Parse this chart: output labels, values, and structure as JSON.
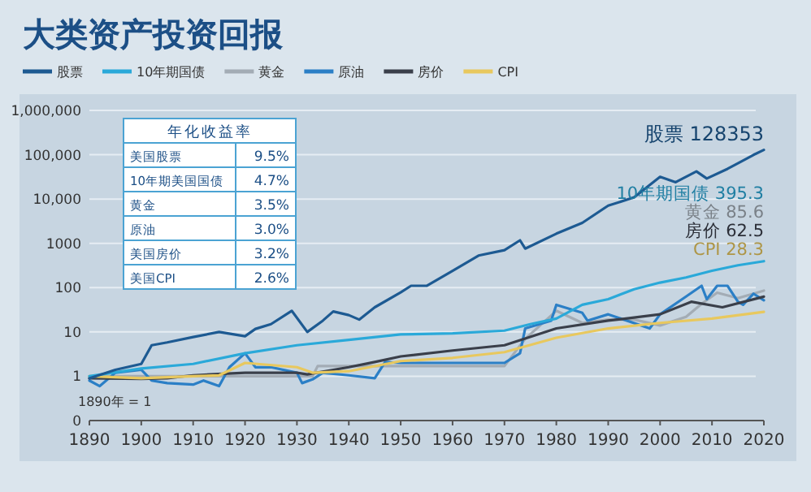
{
  "chart_data": [
    {
      "type": "line",
      "title": "大类资产投资回报",
      "legend": "top",
      "grid": "y",
      "log": "y",
      "line_style": "solid",
      "marker": "none",
      "xlim": [
        1890,
        2020
      ],
      "xticks": [
        1890,
        1900,
        1910,
        1920,
        1930,
        1940,
        1950,
        1960,
        1970,
        1980,
        1990,
        2000,
        2010,
        2020
      ],
      "ylim": [
        0.1,
        1000000
      ],
      "yticks": [
        {
          "value": 0.1,
          "label": "0"
        },
        1,
        10,
        100,
        1000,
        {
          "value": 10000,
          "label": "10,000"
        },
        {
          "value": 100000,
          "label": "100,000"
        },
        {
          "value": 1000000,
          "label": "1,000,000"
        }
      ],
      "series": [
        {
          "name": "股票",
          "color": "#1d5a92",
          "x": [
            1890,
            1895,
            1900,
            1902,
            1905,
            1910,
            1915,
            1920,
            1922,
            1925,
            1929,
            1932,
            1935,
            1937,
            1940,
            1942,
            1945,
            1950,
            1952,
            1955,
            1960,
            1965,
            1970,
            1973,
            1974,
            1980,
            1985,
            1990,
            1995,
            2000,
            2003,
            2007,
            2009,
            2013,
            2015,
            2018,
            2020
          ],
          "values": [
            0.9,
            1.4,
            1.9,
            5,
            5.8,
            7.7,
            10,
            8,
            11.7,
            15,
            30,
            10,
            18,
            29,
            24,
            19,
            36,
            78,
            110,
            110,
            240,
            530,
            700,
            1170,
            760,
            1650,
            2900,
            7100,
            10900,
            31700,
            24000,
            42000,
            29000,
            48000,
            64000,
            99000,
            128353
          ]
        },
        {
          "name": "10年期国债",
          "color": "#2aa9d9",
          "x": [
            1890,
            1900,
            1910,
            1920,
            1930,
            1940,
            1950,
            1960,
            1970,
            1975,
            1980,
            1985,
            1990,
            1995,
            2000,
            2005,
            2010,
            2015,
            2020
          ],
          "values": [
            1,
            1.5,
            1.9,
            3.3,
            5,
            6.6,
            8.8,
            9.3,
            10.7,
            15,
            20,
            41,
            55,
            92,
            130,
            170,
            240,
            320,
            395.3
          ]
        },
        {
          "name": "黄金",
          "color": "#a3acb5",
          "x": [
            1890,
            1933,
            1934,
            1970,
            1974,
            1980,
            1985,
            1990,
            1995,
            2000,
            2005,
            2008,
            2011,
            2015,
            2020
          ],
          "values": [
            1,
            1,
            1.7,
            1.7,
            7,
            30,
            16,
            19,
            19,
            14,
            22,
            43,
            77,
            58,
            85.6
          ]
        },
        {
          "name": "原油",
          "color": "#2b7fc6",
          "x": [
            1890,
            1892,
            1895,
            1900,
            1902,
            1905,
            1910,
            1912,
            1915,
            1917,
            1920,
            1922,
            1925,
            1930,
            1931,
            1933,
            1935,
            1940,
            1945,
            1947,
            1950,
            1960,
            1970,
            1973,
            1974,
            1979,
            1980,
            1985,
            1986,
            1990,
            1998,
            2000,
            2005,
            2008,
            2009,
            2011,
            2013,
            2015,
            2016,
            2018,
            2020
          ],
          "values": [
            0.8,
            0.6,
            1.2,
            1.4,
            0.8,
            0.7,
            0.65,
            0.8,
            0.6,
            1.6,
            3.3,
            1.6,
            1.6,
            1.2,
            0.7,
            0.85,
            1.2,
            1.05,
            0.9,
            2.1,
            2,
            2,
            2,
            3.3,
            12,
            18,
            41,
            27,
            18,
            25,
            12,
            25,
            63,
            110,
            55,
            110,
            110,
            48,
            41,
            73,
            52
          ]
        },
        {
          "name": "房价",
          "color": "#3a3f4a",
          "x": [
            1890,
            1900,
            1905,
            1910,
            1920,
            1930,
            1932,
            1940,
            1945,
            1950,
            1960,
            1970,
            1980,
            1990,
            2000,
            2006,
            2012,
            2020
          ],
          "values": [
            0.9,
            0.87,
            0.9,
            1.05,
            1.2,
            1.2,
            1.1,
            1.6,
            2.1,
            2.8,
            3.8,
            5,
            12,
            18,
            25,
            48,
            36,
            62.5
          ]
        },
        {
          "name": "CPI",
          "color": "#e8c85e",
          "x": [
            1890,
            1900,
            1910,
            1915,
            1920,
            1930,
            1933,
            1940,
            1950,
            1960,
            1970,
            1980,
            1990,
            2000,
            2010,
            2020
          ],
          "values": [
            1,
            0.9,
            1,
            1.05,
            2,
            1.6,
            1.2,
            1.3,
            2.2,
            2.6,
            3.5,
            7.4,
            12,
            16,
            20,
            28.3
          ]
        }
      ],
      "annotations": [
        "股票 128353",
        "10年期国债 395.3",
        "黄金 85.6",
        "房价 62.5",
        "CPI 28.3",
        "1890年 = 1"
      ]
    },
    {
      "type": "other",
      "title": "年化收益率",
      "annotations": [
        "美国股票",
        "9.5%",
        "10年期美国国债",
        "4.7%",
        "黄金",
        "3.5%",
        "原油",
        "3.0%",
        "美国房价",
        "3.2%",
        "美国CPI",
        "2.6%"
      ]
    }
  ]
}
